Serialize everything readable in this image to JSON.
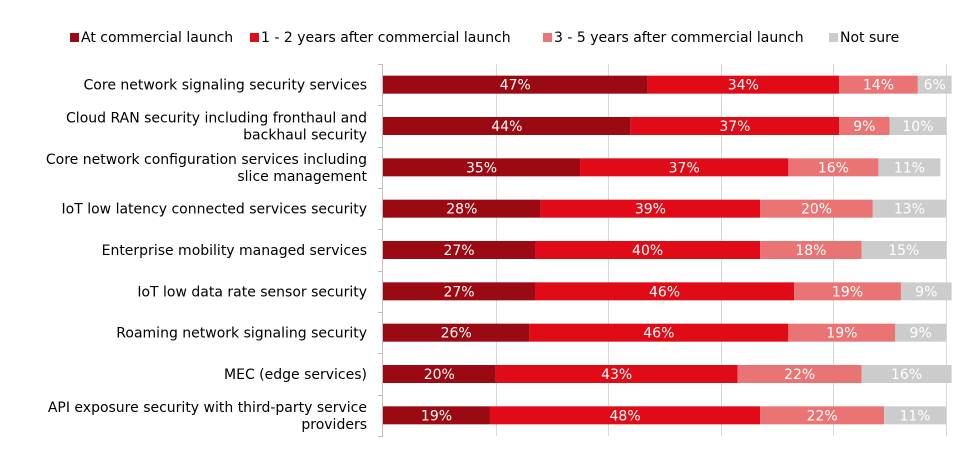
{
  "chart_data": {
    "type": "bar",
    "orientation": "horizontal",
    "stacked": true,
    "percent_stacked": true,
    "title": "",
    "xlabel": "",
    "ylabel": "",
    "xlim": [
      0,
      100
    ],
    "grid": true,
    "legend_position": "top",
    "categories": [
      "Core network signaling security services",
      "Cloud RAN security including fronthaul and backhaul security",
      "Core network configuration services including slice management",
      "IoT low latency connected services security",
      "Enterprise mobility managed services",
      "IoT low data rate sensor security",
      "Roaming network signaling security",
      "MEC (edge services)",
      "API exposure security with third-party service providers"
    ],
    "category_label_lines": [
      [
        "Core network signaling security services"
      ],
      [
        "Cloud RAN security including fronthaul and",
        "backhaul security"
      ],
      [
        "Core network configuration services including",
        "slice management"
      ],
      [
        "IoT low latency connected services security"
      ],
      [
        "Enterprise mobility managed services"
      ],
      [
        "IoT low data rate sensor security"
      ],
      [
        "Roaming network signaling security"
      ],
      [
        "MEC (edge services)"
      ],
      [
        "API exposure security with third-party service",
        "providers"
      ]
    ],
    "series": [
      {
        "name": "At commercial launch",
        "color": "#9b0a12",
        "values": [
          47,
          44,
          35,
          28,
          27,
          27,
          26,
          20,
          19
        ]
      },
      {
        "name": "1 - 2 years after commercial launch",
        "color": "#e00b16",
        "values": [
          34,
          37,
          37,
          39,
          40,
          46,
          46,
          43,
          48
        ]
      },
      {
        "name": "3 - 5 years after commercial launch",
        "color": "#ea7474",
        "values": [
          14,
          9,
          16,
          20,
          18,
          19,
          19,
          22,
          22
        ]
      },
      {
        "name": "Not sure",
        "color": "#cccccc",
        "values": [
          6,
          10,
          11,
          13,
          15,
          9,
          9,
          16,
          11
        ]
      }
    ]
  }
}
